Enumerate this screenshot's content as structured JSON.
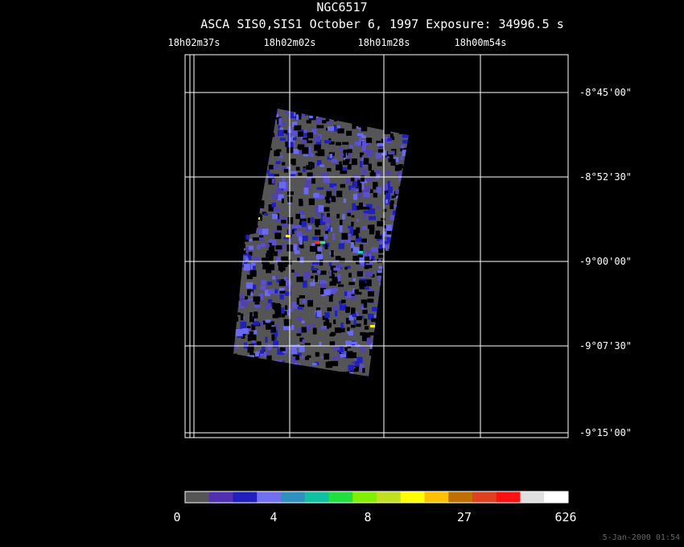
{
  "header": {
    "title": "NGC6517",
    "subtitle": "ASCA SIS0,SIS1 October 6, 1997 Exposure: 34996.5 s"
  },
  "ra_labels": [
    "18h02m37s",
    "18h02m02s",
    "18h01m28s",
    "18h00m54s"
  ],
  "dec_labels": [
    "-8°45'00\"",
    "-8°52'30\"",
    "-9°00'00\"",
    "-9°07'30\"",
    "-9°15'00\""
  ],
  "colorbar_labels": [
    "0",
    "4",
    "8",
    "27",
    "626"
  ],
  "footer": "5-Jan-2000 01:54"
}
